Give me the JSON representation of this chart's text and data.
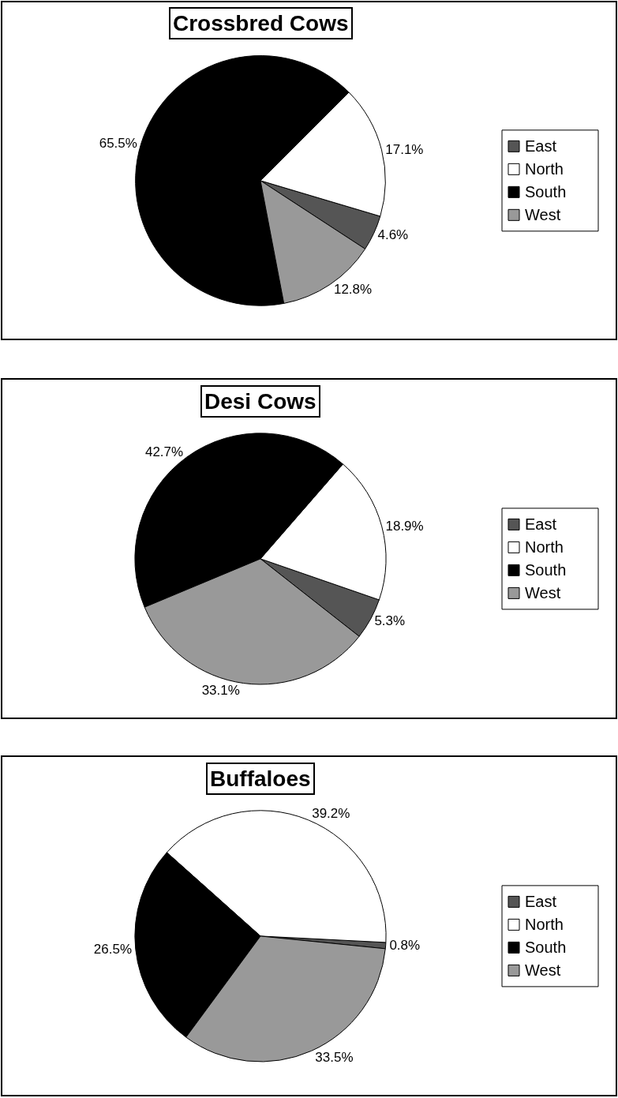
{
  "chart_data": [
    {
      "type": "pie",
      "title": "Crossbred Cows",
      "categories": [
        "East",
        "North",
        "South",
        "West"
      ],
      "values": [
        4.6,
        17.1,
        65.5,
        12.8
      ],
      "value_labels": [
        "4.6%",
        "17.1%",
        "65.5%",
        "12.8%"
      ],
      "colors": [
        "#555555",
        "#ffffff",
        "#000000",
        "#999999"
      ],
      "legend": "right"
    },
    {
      "type": "pie",
      "title": "Desi Cows",
      "categories": [
        "East",
        "North",
        "South",
        "West"
      ],
      "values": [
        5.3,
        18.9,
        42.7,
        33.1
      ],
      "value_labels": [
        "5.3%",
        "18.9%",
        "42.7%",
        "33.1%"
      ],
      "colors": [
        "#555555",
        "#ffffff",
        "#000000",
        "#999999"
      ],
      "legend": "right"
    },
    {
      "type": "pie",
      "title": "Buffaloes",
      "categories": [
        "East",
        "North",
        "South",
        "West"
      ],
      "values": [
        0.8,
        39.2,
        26.5,
        33.5
      ],
      "value_labels": [
        "0.8%",
        "39.2%",
        "26.5%",
        "33.5%"
      ],
      "colors": [
        "#555555",
        "#ffffff",
        "#000000",
        "#999999"
      ],
      "legend": "right"
    }
  ]
}
